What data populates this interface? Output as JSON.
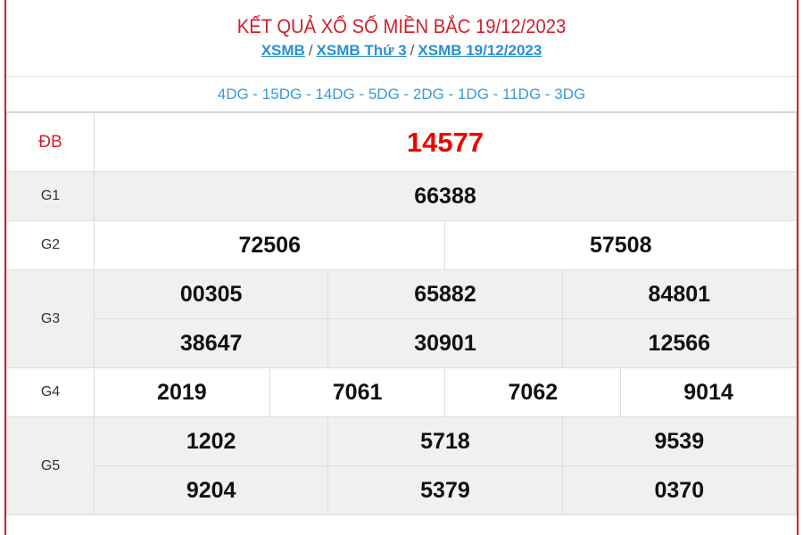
{
  "header": {
    "title": "KẾT QUẢ XỔ SỐ MIỀN BẮC 19/12/2023",
    "breadcrumbs": [
      "XSMB",
      "XSMB Thứ 3",
      "XSMB 19/12/2023"
    ],
    "separator": "/"
  },
  "codes": "4DG - 15DG - 14DG - 5DG - 2DG - 1DG - 11DG - 3DG",
  "prizes": {
    "db": {
      "label": "ĐB",
      "numbers": [
        "14577"
      ]
    },
    "g1": {
      "label": "G1",
      "numbers": [
        "66388"
      ]
    },
    "g2": {
      "label": "G2",
      "numbers": [
        "72506",
        "57508"
      ]
    },
    "g3": {
      "label": "G3",
      "numbers": [
        "00305",
        "65882",
        "84801",
        "38647",
        "30901",
        "12566"
      ]
    },
    "g4": {
      "label": "G4",
      "numbers": [
        "2019",
        "7061",
        "7062",
        "9014"
      ]
    },
    "g5": {
      "label": "G5",
      "numbers": [
        "1202",
        "5718",
        "9539",
        "9204",
        "5379",
        "0370"
      ]
    }
  },
  "colors": {
    "accent": "#d0202c",
    "special": "#e00000",
    "link": "#2a8fd1"
  }
}
